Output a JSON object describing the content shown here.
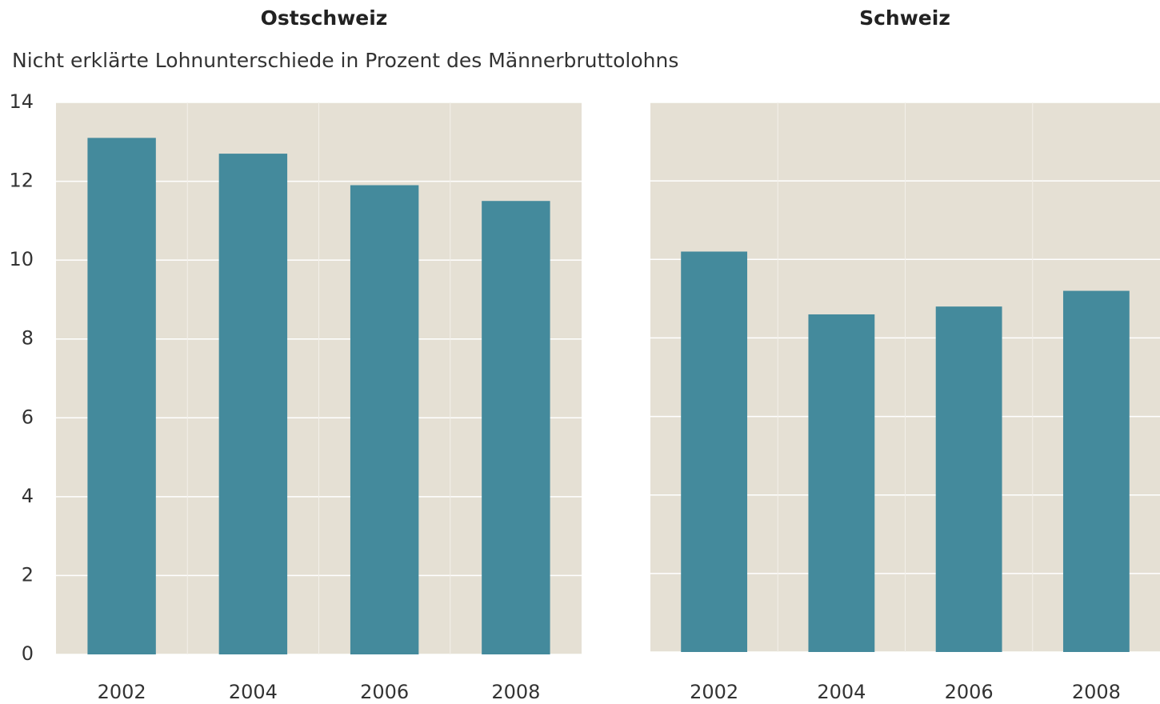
{
  "chart_data": [
    {
      "type": "bar",
      "title": "Ostschweiz",
      "subtitle": "Nicht erklärte Lohnunterschiede in Prozent des Männerbruttolohns",
      "categories": [
        "2002",
        "2004",
        "2006",
        "2008"
      ],
      "values": [
        13.1,
        12.7,
        11.9,
        11.5
      ],
      "color": "#448a9c",
      "ylim": [
        0,
        14
      ],
      "yticks": [
        0,
        2,
        4,
        6,
        8,
        10,
        12,
        14
      ],
      "grid": true,
      "tick_labels": true
    },
    {
      "type": "bar",
      "title": "Schweiz",
      "categories": [
        "2002",
        "2004",
        "2006",
        "2008"
      ],
      "values": [
        10.2,
        8.6,
        8.8,
        9.2
      ],
      "color": "#448a9c",
      "ylim": [
        0,
        14
      ],
      "yticks": [
        0,
        2,
        4,
        6,
        8,
        10,
        12,
        14
      ],
      "grid": true,
      "tick_labels": false
    }
  ]
}
